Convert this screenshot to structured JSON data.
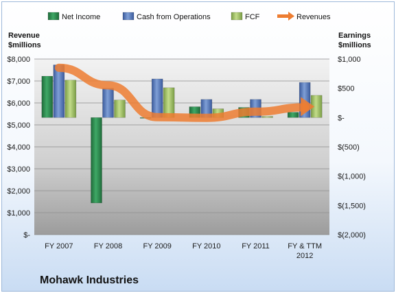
{
  "chart_data": {
    "type": "bar",
    "title": "Mohawk Industries",
    "categories": [
      "FY 2007",
      "FY 2008",
      "FY 2009",
      "FY 2010",
      "FY 2011",
      "FY & TTM 2012"
    ],
    "category_lines": [
      [
        "FY 2007"
      ],
      [
        "FY 2008"
      ],
      [
        "FY 2009"
      ],
      [
        "FY 2010"
      ],
      [
        "FY 2011"
      ],
      [
        "FY & TTM",
        "2012"
      ]
    ],
    "left_axis": {
      "title_lines": [
        "Revenue",
        "$millions"
      ],
      "range": [
        0,
        8000
      ],
      "ticks": [
        0,
        1000,
        2000,
        3000,
        4000,
        5000,
        6000,
        7000,
        8000
      ],
      "tick_labels": [
        "$-",
        "$1,000",
        "$2,000",
        "$3,000",
        "$4,000",
        "$5,000",
        "$6,000",
        "$7,000",
        "$8,000"
      ]
    },
    "right_axis": {
      "title_lines": [
        "Earnings",
        "$millions"
      ],
      "range": [
        -2000,
        1000
      ],
      "ticks": [
        -2000,
        -1500,
        -1000,
        -500,
        0,
        500,
        1000
      ],
      "tick_labels": [
        "$(2,000)",
        "$(1,500)",
        "$(1,000)",
        "$(500)",
        "$-",
        "$500",
        "$1,000"
      ]
    },
    "series": [
      {
        "name": "Net Income",
        "kind": "bar",
        "axis": "right",
        "color": "#2e8b50",
        "values": [
          707,
          -1458,
          -5,
          185,
          173,
          90
        ]
      },
      {
        "name": "Cash from Operations",
        "kind": "bar",
        "axis": "right",
        "color": "#4f72b8",
        "values": [
          900,
          500,
          660,
          310,
          310,
          600
        ]
      },
      {
        "name": "FCF",
        "kind": "bar",
        "axis": "right",
        "color": "#9bbf60",
        "values": [
          640,
          300,
          510,
          150,
          20,
          380
        ]
      },
      {
        "name": "Revenues",
        "kind": "line",
        "axis": "left",
        "color": "#ed7d31",
        "values": [
          7600,
          6800,
          5350,
          5320,
          5600,
          5800
        ]
      }
    ],
    "grid": true,
    "legend_position": "top"
  }
}
